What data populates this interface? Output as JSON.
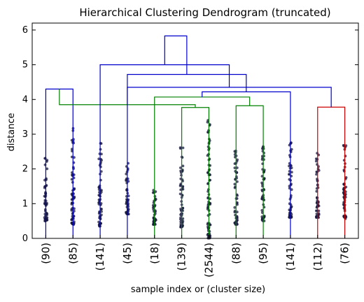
{
  "chart_data": {
    "type": "dendrogram",
    "title": "Hierarchical Clustering Dendrogram (truncated)",
    "xlabel": "sample index or (cluster size)",
    "ylabel": "distance",
    "ylim": [
      0,
      6.2
    ],
    "yticks": [
      0,
      1,
      2,
      3,
      4,
      5,
      6
    ],
    "leaves": [
      "(90)",
      "(85)",
      "(141)",
      "(45)",
      "(18)",
      "(139)",
      "(2544)",
      "(88)",
      "(95)",
      "(141)",
      "(112)",
      "(76)"
    ],
    "leaf_spread": [
      {
        "min": 0.5,
        "max": 2.45
      },
      {
        "min": 0.4,
        "max": 3.3
      },
      {
        "min": 0.35,
        "max": 2.9
      },
      {
        "min": 0.7,
        "max": 2.25
      },
      {
        "min": 0.4,
        "max": 1.4
      },
      {
        "min": 0.3,
        "max": 2.7
      },
      {
        "min": 0.0,
        "max": 3.55
      },
      {
        "min": 0.4,
        "max": 2.55
      },
      {
        "min": 0.5,
        "max": 2.7
      },
      {
        "min": 0.6,
        "max": 2.8
      },
      {
        "min": 0.6,
        "max": 2.5
      },
      {
        "min": 0.55,
        "max": 2.7
      }
    ],
    "links": [
      {
        "a": 0,
        "b": 1,
        "height": 4.3,
        "color": "#0000cc"
      },
      {
        "a": 5,
        "b": 6,
        "height": 3.77,
        "color": "#008000"
      },
      {
        "a": 7,
        "b": 8,
        "height": 3.82,
        "color": "#008000"
      },
      {
        "a": 12,
        "b": 13,
        "height": 3.85,
        "color": "#008000"
      },
      {
        "a": 4,
        "b": 14,
        "height": 4.07,
        "color": "#008000"
      },
      {
        "a": 10,
        "b": 11,
        "height": 3.78,
        "color": "#cc0000"
      },
      {
        "a": 9,
        "b": 16,
        "height": 4.22,
        "color": "#0000cc"
      },
      {
        "a": 15,
        "b": 17,
        "height": 4.35,
        "color": "#0000cc"
      },
      {
        "a": 3,
        "b": 18,
        "height": 4.72,
        "color": "#0000cc"
      },
      {
        "a": 2,
        "b": 19,
        "height": 5.0,
        "color": "#0000cc"
      },
      {
        "a": 20,
        "b": 21,
        "height": 5.83,
        "color": "#0000cc"
      }
    ]
  }
}
